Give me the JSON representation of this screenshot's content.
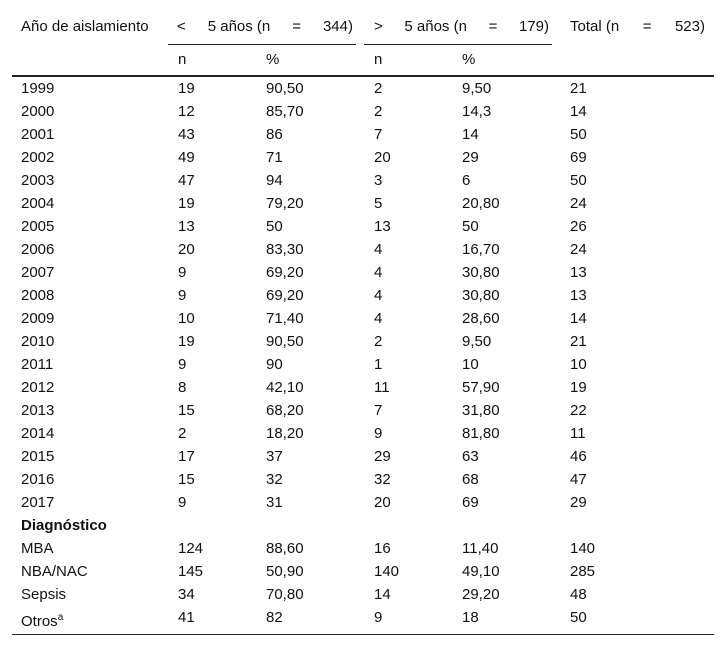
{
  "table": {
    "header": {
      "first": "Año de aislamiento",
      "group1": [
        "<",
        "5 años (n",
        "=",
        "344)"
      ],
      "group2": [
        ">",
        "5 años (n",
        "=",
        "179)"
      ],
      "total": [
        "Total (n",
        "=",
        "523)"
      ],
      "sub": [
        "n",
        "%",
        "n",
        "%"
      ]
    },
    "rows": [
      {
        "label": "1999",
        "cells": [
          "19",
          "90,50",
          "2",
          "9,50",
          "21"
        ]
      },
      {
        "label": "2000",
        "cells": [
          "12",
          "85,70",
          "2",
          "14,3",
          "14"
        ]
      },
      {
        "label": "2001",
        "cells": [
          "43",
          "86",
          "7",
          "14",
          "50"
        ]
      },
      {
        "label": "2002",
        "cells": [
          "49",
          "71",
          "20",
          "29",
          "69"
        ]
      },
      {
        "label": "2003",
        "cells": [
          "47",
          "94",
          "3",
          "6",
          "50"
        ]
      },
      {
        "label": "2004",
        "cells": [
          "19",
          "79,20",
          "5",
          "20,80",
          "24"
        ]
      },
      {
        "label": "2005",
        "cells": [
          "13",
          "50",
          "13",
          "50",
          "26"
        ]
      },
      {
        "label": "2006",
        "cells": [
          "20",
          "83,30",
          "4",
          "16,70",
          "24"
        ]
      },
      {
        "label": "2007",
        "cells": [
          "9",
          "69,20",
          "4",
          "30,80",
          "13"
        ]
      },
      {
        "label": "2008",
        "cells": [
          "9",
          "69,20",
          "4",
          "30,80",
          "13"
        ]
      },
      {
        "label": "2009",
        "cells": [
          "10",
          "71,40",
          "4",
          "28,60",
          "14"
        ]
      },
      {
        "label": "2010",
        "cells": [
          "19",
          "90,50",
          "2",
          "9,50",
          "21"
        ]
      },
      {
        "label": "2011",
        "cells": [
          "9",
          "90",
          "1",
          "10",
          "10"
        ]
      },
      {
        "label": "2012",
        "cells": [
          "8",
          "42,10",
          "11",
          "57,90",
          "19"
        ]
      },
      {
        "label": "2013",
        "cells": [
          "15",
          "68,20",
          "7",
          "31,80",
          "22"
        ]
      },
      {
        "label": "2014",
        "cells": [
          "2",
          "18,20",
          "9",
          "81,80",
          "11"
        ]
      },
      {
        "label": "2015",
        "cells": [
          "17",
          "37",
          "29",
          "63",
          "46"
        ]
      },
      {
        "label": "2016",
        "cells": [
          "15",
          "32",
          "32",
          "68",
          "47"
        ]
      },
      {
        "label": "2017",
        "cells": [
          "9",
          "31",
          "20",
          "69",
          "29"
        ]
      }
    ],
    "section": "Diagnóstico",
    "diagnosis_rows": [
      {
        "label": "MBA",
        "cells": [
          "124",
          "88,60",
          "16",
          "11,40",
          "140"
        ]
      },
      {
        "label": "NBA/NAC",
        "cells": [
          "145",
          "50,90",
          "140",
          "49,10",
          "285"
        ]
      },
      {
        "label": "Sepsis",
        "cells": [
          "34",
          "70,80",
          "14",
          "29,20",
          "48"
        ]
      },
      {
        "label": "Otros",
        "sup": "a",
        "cells": [
          "41",
          "82",
          "9",
          "18",
          "50"
        ]
      }
    ]
  }
}
